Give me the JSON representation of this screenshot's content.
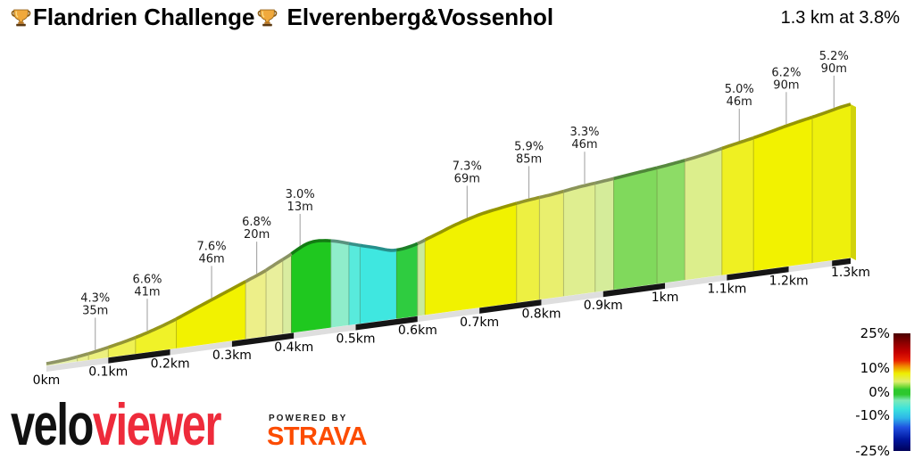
{
  "header": {
    "challenge_name": "Flandrien Challenge",
    "segment_name": "Elverenberg&Vossenhol",
    "summary": "1.3 km at 3.8%"
  },
  "chart_data": {
    "type": "area",
    "title": "Elverenberg&Vossenhol gradient profile",
    "x_unit": "km",
    "total_distance_km": 1.3,
    "average_gradient": "3.8%",
    "x_ticks": [
      "0km",
      "0.1km",
      "0.2km",
      "0.3km",
      "0.4km",
      "0.5km",
      "0.6km",
      "0.7km",
      "0.8km",
      "0.9km",
      "1km",
      "1.1km",
      "1.2km",
      "1.3km"
    ],
    "gradient_labels": [
      {
        "gradient": "4.3%",
        "length": "35m",
        "km": 0.079
      },
      {
        "gradient": "6.6%",
        "length": "41m",
        "km": 0.163
      },
      {
        "gradient": "7.6%",
        "length": "46m",
        "km": 0.267
      },
      {
        "gradient": "6.8%",
        "length": "20m",
        "km": 0.34
      },
      {
        "gradient": "3.0%",
        "length": "13m",
        "km": 0.41
      },
      {
        "gradient": "7.3%",
        "length": "69m",
        "km": 0.68
      },
      {
        "gradient": "5.9%",
        "length": "85m",
        "km": 0.78
      },
      {
        "gradient": "3.3%",
        "length": "46m",
        "km": 0.87
      },
      {
        "gradient": "5.0%",
        "length": "46m",
        "km": 1.12
      },
      {
        "gradient": "6.2%",
        "length": "90m",
        "km": 1.196
      },
      {
        "gradient": "5.2%",
        "length": "90m",
        "km": 1.273
      }
    ],
    "profile_points": [
      [
        0,
        2
      ],
      [
        0.05,
        5
      ],
      [
        0.1,
        11
      ],
      [
        0.15,
        19
      ],
      [
        0.2,
        30
      ],
      [
        0.25,
        44
      ],
      [
        0.3,
        58
      ],
      [
        0.35,
        72
      ],
      [
        0.39,
        86
      ],
      [
        0.425,
        98
      ],
      [
        0.46,
        97
      ],
      [
        0.5,
        89
      ],
      [
        0.53,
        83
      ],
      [
        0.56,
        77
      ],
      [
        0.59,
        79
      ],
      [
        0.62,
        86
      ],
      [
        0.66,
        96
      ],
      [
        0.7,
        104
      ],
      [
        0.74,
        109
      ],
      [
        0.78,
        113
      ],
      [
        0.82,
        116
      ],
      [
        0.86,
        120
      ],
      [
        0.9,
        123
      ],
      [
        0.95,
        127
      ],
      [
        1.0,
        131
      ],
      [
        1.05,
        136
      ],
      [
        1.1,
        143
      ],
      [
        1.15,
        150
      ],
      [
        1.2,
        158
      ],
      [
        1.25,
        165
      ],
      [
        1.3,
        172
      ]
    ],
    "segments": [
      [
        0.0,
        0.05,
        "#E6F0A6"
      ],
      [
        0.05,
        0.068,
        "#EAF08E"
      ],
      [
        0.068,
        0.1,
        "#ECF07E"
      ],
      [
        0.1,
        0.144,
        "#EFF152"
      ],
      [
        0.144,
        0.21,
        "#F0F228"
      ],
      [
        0.21,
        0.322,
        "#F2F200"
      ],
      [
        0.322,
        0.355,
        "#EDEF89"
      ],
      [
        0.355,
        0.382,
        "#E9EF9C"
      ],
      [
        0.382,
        0.396,
        "#D9ECA0"
      ],
      [
        0.396,
        0.46,
        "#1FC81F"
      ],
      [
        0.46,
        0.489,
        "#8FEDCB"
      ],
      [
        0.489,
        0.507,
        "#58EADC"
      ],
      [
        0.507,
        0.566,
        "#3FE7E0"
      ],
      [
        0.566,
        0.6,
        "#2FCC40"
      ],
      [
        0.6,
        0.612,
        "#C9EA9C"
      ],
      [
        0.612,
        0.76,
        "#F1F200"
      ],
      [
        0.76,
        0.797,
        "#EDF042"
      ],
      [
        0.797,
        0.836,
        "#E9EF6E"
      ],
      [
        0.836,
        0.887,
        "#DFEE90"
      ],
      [
        0.887,
        0.917,
        "#D5EC9A"
      ],
      [
        0.917,
        0.987,
        "#80D95C"
      ],
      [
        0.987,
        1.032,
        "#8DDC66"
      ],
      [
        1.032,
        1.092,
        "#DCEE8C"
      ],
      [
        1.092,
        1.143,
        "#EFF022"
      ],
      [
        1.143,
        1.238,
        "#F2F200"
      ],
      [
        1.238,
        1.3,
        "#EEF00C"
      ]
    ],
    "legend": {
      "range": [
        -25,
        25
      ],
      "ticks": [
        {
          "label": "25%",
          "value": 25
        },
        {
          "label": "10%",
          "value": 10
        },
        {
          "label": "0%",
          "value": 0
        },
        {
          "label": "-10%",
          "value": -10
        },
        {
          "label": "-25%",
          "value": -25
        }
      ],
      "gradient_stops": [
        "#4A0000 0%",
        "#8B0000 8%",
        "#C40000 16%",
        "#E82000 23%",
        "#F08800 28%",
        "#EEEE00 34%",
        "#E0EE6E 41%",
        "#7EDC3C 45%",
        "#2DC82D 48%",
        "#2DC82D 52%",
        "#7CE9B8 57%",
        "#3CE4DC 64%",
        "#2EB6E8 72%",
        "#2050E0 80%",
        "#0018A0 90%",
        "#000058 100%"
      ]
    }
  },
  "footer": {
    "logo_part1": "velo",
    "logo_part2": "viewer",
    "powered_by": "POWERED BY",
    "strava": "STRAVA",
    "logo_color_black": "#111111",
    "logo_color_red": "#EE2B3B",
    "strava_orange": "#FC4C02"
  }
}
